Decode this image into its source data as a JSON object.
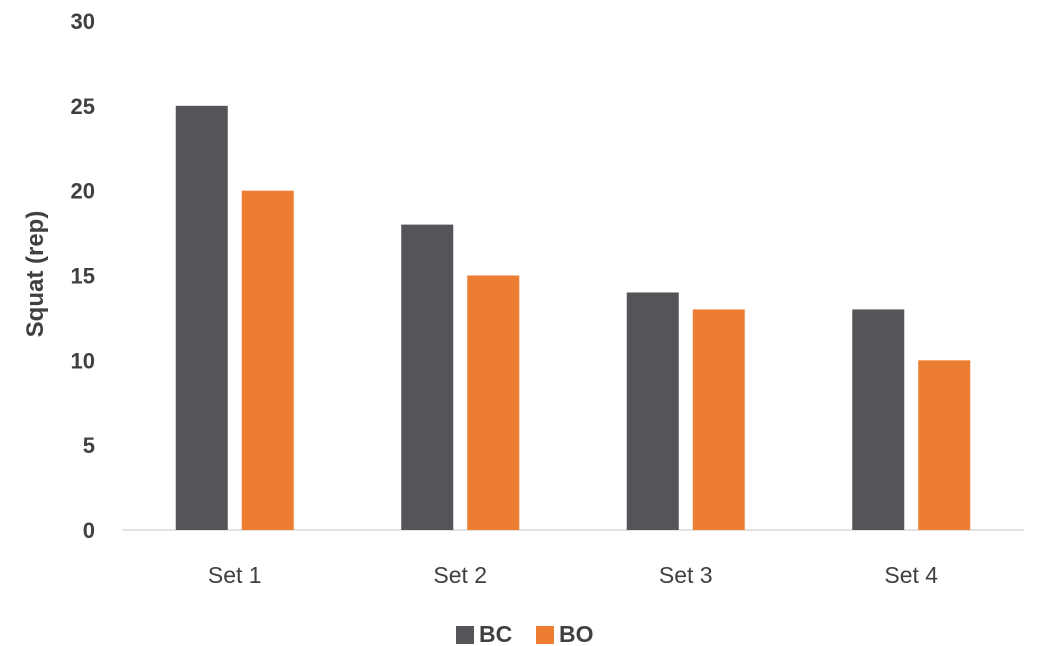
{
  "chart_data": {
    "type": "bar",
    "title": "",
    "xlabel": "",
    "ylabel": "Squat (rep)",
    "categories": [
      "Set 1",
      "Set 2",
      "Set 3",
      "Set 4"
    ],
    "series": [
      {
        "name": "BC",
        "values": [
          25,
          18,
          14,
          13
        ],
        "color": "#545559"
      },
      {
        "name": "BO",
        "values": [
          20,
          15,
          13,
          10
        ],
        "color": "#ED7D31"
      }
    ],
    "ylim": [
      0,
      30
    ],
    "y_ticks": [
      0,
      5,
      10,
      15,
      20,
      25,
      30
    ],
    "grid": false,
    "legend_position": "bottom"
  }
}
